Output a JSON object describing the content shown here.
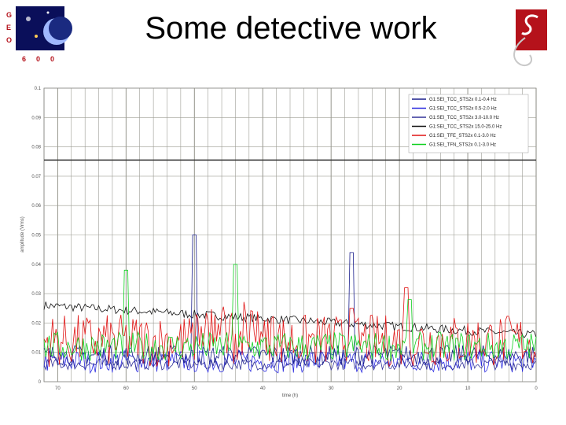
{
  "slide": {
    "title": "Some detective work"
  },
  "colors": {
    "navy": "#1a1f8c",
    "dark": "#0b1a40",
    "blue": "#2a2ae0",
    "black": "#111111",
    "red": "#e01414",
    "green": "#10d020",
    "logo_red": "#b5121b",
    "grid": "#8a8a80"
  },
  "icons": {
    "left_logo": "geo600-logo",
    "right_logo": "g-logo"
  },
  "logo_text": {
    "letters": [
      "G",
      "E",
      "O",
      "6",
      "0",
      "0"
    ]
  },
  "chart_data": {
    "type": "line",
    "xlabel": "time (h)",
    "ylabel": "amplitude (Vrms)",
    "xlim": [
      72,
      0
    ],
    "ylim": [
      0,
      0.1
    ],
    "x_ticks": [
      "70",
      "60",
      "50",
      "40",
      "30",
      "20",
      "10",
      "0"
    ],
    "x_tick_values": [
      70,
      60,
      50,
      40,
      30,
      20,
      10,
      0
    ],
    "y_ticks": [
      "0",
      "0.01",
      "0.02",
      "0.03",
      "0.04",
      "0.05",
      "0.06",
      "0.07",
      "0.08",
      "0.09",
      "0.1"
    ],
    "y_tick_values": [
      0,
      0.01,
      0.02,
      0.03,
      0.04,
      0.05,
      0.06,
      0.07,
      0.08,
      0.09,
      0.1
    ],
    "legend_position": "top-right",
    "grid": true,
    "series": [
      {
        "name": "G1:SEI_TCC_STS2x 0.1-0.4 Hz",
        "color": "#1a1f8c",
        "base": 0.009,
        "noise": 0.0035,
        "trend": 0,
        "spikes": [
          [
            27,
            0.044
          ],
          [
            50,
            0.05
          ]
        ]
      },
      {
        "name": "G1:SEI_TCC_STS2x 0.5-2.0 Hz",
        "color": "#2a2ae0",
        "base": 0.007,
        "noise": 0.004,
        "trend": 0,
        "spikes": []
      },
      {
        "name": "G1:SEI_TCC_STS2x 3.0-10.0 Hz",
        "color": "#333399",
        "base": 0.006,
        "noise": 0.002,
        "trend": 0,
        "spikes": []
      },
      {
        "name": "G1:SEI_TCC_STS2x 15.0-25.0 Hz",
        "color": "#111111",
        "base": 0.016,
        "noise": 0.0015,
        "trend": 0.01,
        "spikes": []
      },
      {
        "name": "G1:SEI_TFE_STS2x 0.1-3.0 Hz",
        "color": "#e01414",
        "base": 0.014,
        "noise": 0.009,
        "trend": 0,
        "spikes": [
          [
            19,
            0.032
          ],
          [
            27,
            0.025
          ]
        ]
      },
      {
        "name": "G1:SEI_TFN_STS2x 0.1-3.0 Hz",
        "color": "#10d020",
        "base": 0.012,
        "noise": 0.005,
        "trend": 0,
        "spikes": [
          [
            60,
            0.038
          ],
          [
            44,
            0.04
          ],
          [
            18.5,
            0.028
          ]
        ]
      }
    ]
  }
}
